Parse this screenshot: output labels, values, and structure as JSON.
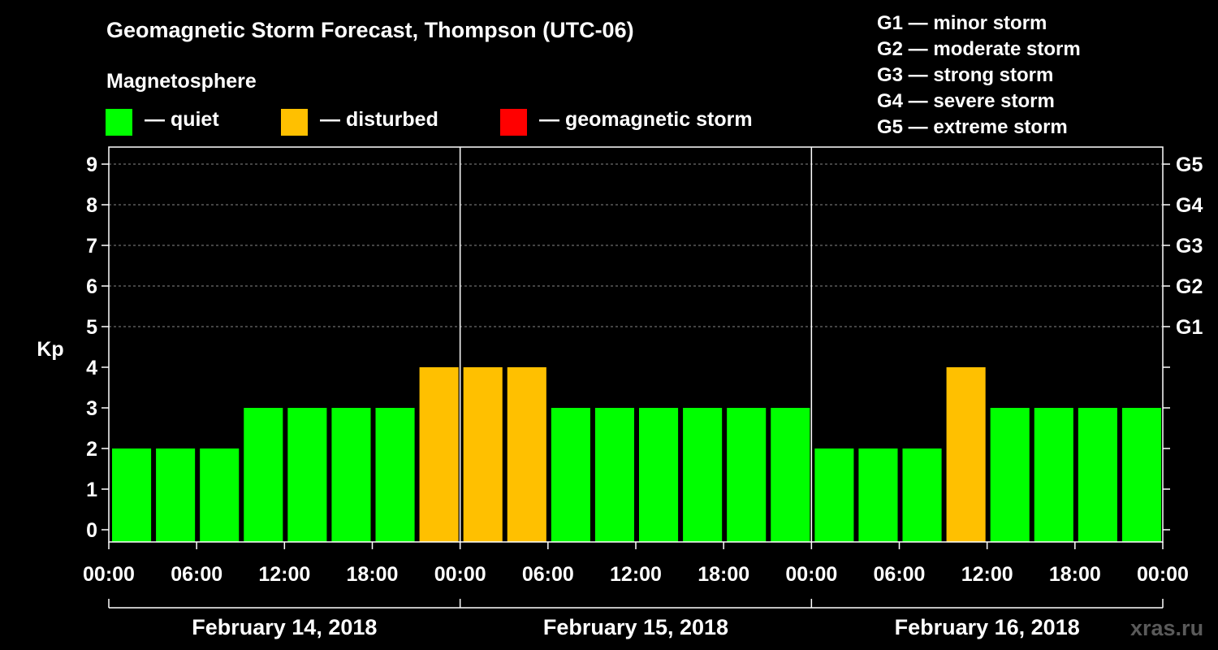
{
  "title": "Geomagnetic Storm Forecast, Thompson (UTC-06)",
  "subtitle": "Magnetosphere",
  "legend": [
    {
      "label": "— quiet",
      "color": "#00ff00"
    },
    {
      "label": "— disturbed",
      "color": "#ffc000"
    },
    {
      "label": "— geomagnetic storm",
      "color": "#ff0000"
    }
  ],
  "storm_scale": [
    "G1 — minor storm",
    "G2 — moderate storm",
    "G3 — strong storm",
    "G4 — severe storm",
    "G5 — extreme storm"
  ],
  "watermark": "xras.ru",
  "chart_data": {
    "type": "bar",
    "ylabel": "Kp",
    "ylim": [
      0,
      9
    ],
    "y_ticks": [
      0,
      1,
      2,
      3,
      4,
      5,
      6,
      7,
      8,
      9
    ],
    "right_axis_labels": [
      {
        "kp": 5,
        "label": "G1"
      },
      {
        "kp": 6,
        "label": "G2"
      },
      {
        "kp": 7,
        "label": "G3"
      },
      {
        "kp": 8,
        "label": "G4"
      },
      {
        "kp": 9,
        "label": "G5"
      }
    ],
    "x_tick_labels": [
      "00:00",
      "06:00",
      "12:00",
      "18:00",
      "00:00",
      "06:00",
      "12:00",
      "18:00",
      "00:00",
      "06:00",
      "12:00",
      "18:00",
      "00:00"
    ],
    "days": [
      "February 14, 2018",
      "February 15, 2018",
      "February 16, 2018"
    ],
    "interval_hours": 3,
    "values": [
      2,
      2,
      2,
      3,
      3,
      3,
      3,
      4,
      4,
      4,
      3,
      3,
      3,
      3,
      3,
      3,
      2,
      2,
      2,
      4,
      3,
      3,
      3,
      3
    ],
    "status": [
      "quiet",
      "quiet",
      "quiet",
      "quiet",
      "quiet",
      "quiet",
      "quiet",
      "disturbed",
      "disturbed",
      "disturbed",
      "quiet",
      "quiet",
      "quiet",
      "quiet",
      "quiet",
      "quiet",
      "quiet",
      "quiet",
      "quiet",
      "disturbed",
      "quiet",
      "quiet",
      "quiet",
      "quiet"
    ],
    "colors": {
      "quiet": "#00ff00",
      "disturbed": "#ffc000",
      "storm": "#ff0000"
    },
    "grid": "dashed horizontal lines at Kp 5-9"
  }
}
